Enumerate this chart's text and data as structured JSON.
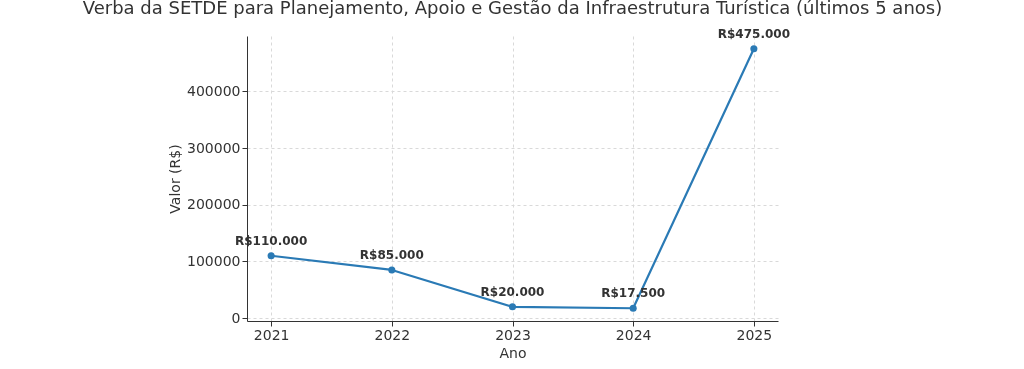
{
  "chart_data": {
    "type": "line",
    "title": "Verba da SETDE para Planejamento, Apoio e Gestão da Infraestrutura Turística (últimos 5 anos)",
    "xlabel": "Ano",
    "ylabel": "Valor (R$)",
    "x": [
      2021,
      2022,
      2023,
      2024,
      2025
    ],
    "series": [
      {
        "color": "#2a7ab5",
        "values": [
          110000,
          85000,
          20000,
          17500,
          475000
        ],
        "value_labels": [
          "R$110.000",
          "R$85.000",
          "R$20.000",
          "R$17.500",
          "R$475.000"
        ]
      }
    ],
    "xlim": [
      2020.8,
      2025.2
    ],
    "xticks": [
      2021,
      2022,
      2023,
      2024,
      2025
    ],
    "ylim": [
      -5000,
      497500
    ],
    "yticks": [
      0,
      100000,
      200000,
      300000,
      400000
    ],
    "grid": true,
    "marker": "circle",
    "line_style": "solid"
  }
}
